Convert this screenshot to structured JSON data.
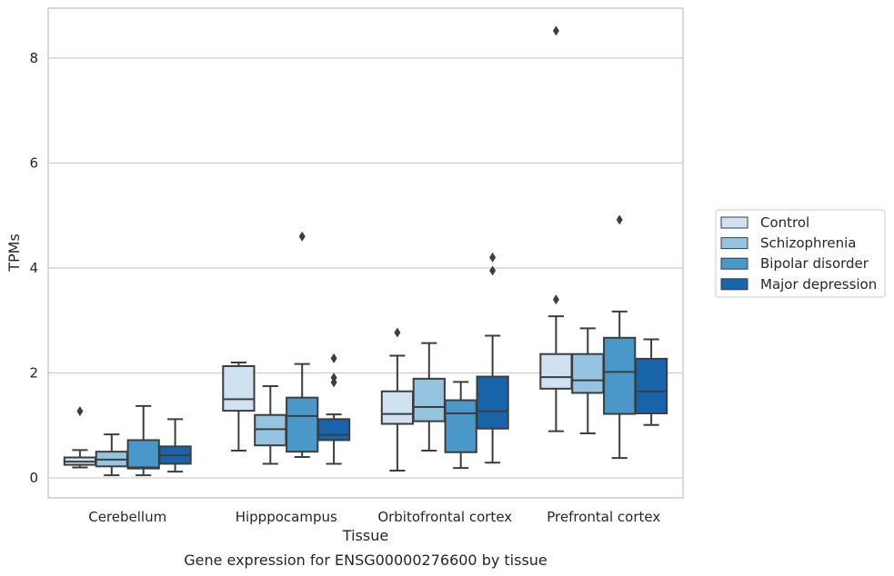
{
  "chart_data": {
    "type": "box",
    "xlabel": "Tissue",
    "ylabel": "TPMs",
    "caption": "Gene expression for ENSG00000276600 by tissue",
    "ylim": [
      -0.38,
      8.95
    ],
    "yticks": [
      0,
      2,
      4,
      6,
      8
    ],
    "grid": true,
    "legend_position": "right",
    "categories": [
      "Cerebellum",
      "Hipppocampus",
      "Orbitofrontal cortex",
      "Prefrontal cortex"
    ],
    "series": [
      {
        "name": "Control",
        "color": "#d0e1f2",
        "boxes": [
          {
            "whislo": 0.2,
            "q1": 0.25,
            "med": 0.31,
            "q3": 0.39,
            "whishi": 0.53,
            "fliers": [
              1.27
            ]
          },
          {
            "whislo": 0.52,
            "q1": 1.28,
            "med": 1.5,
            "q3": 2.13,
            "whishi": 2.2,
            "fliers": []
          },
          {
            "whislo": 0.14,
            "q1": 1.03,
            "med": 1.22,
            "q3": 1.65,
            "whishi": 2.33,
            "fliers": [
              2.77
            ]
          },
          {
            "whislo": 0.89,
            "q1": 1.7,
            "med": 1.92,
            "q3": 2.36,
            "whishi": 3.08,
            "fliers": [
              3.4,
              8.52
            ]
          }
        ]
      },
      {
        "name": "Schizophrenia",
        "color": "#94c4df",
        "boxes": [
          {
            "whislo": 0.05,
            "q1": 0.22,
            "med": 0.35,
            "q3": 0.5,
            "whishi": 0.83,
            "fliers": []
          },
          {
            "whislo": 0.27,
            "q1": 0.62,
            "med": 0.93,
            "q3": 1.2,
            "whishi": 1.75,
            "fliers": []
          },
          {
            "whislo": 0.52,
            "q1": 1.08,
            "med": 1.35,
            "q3": 1.89,
            "whishi": 2.57,
            "fliers": []
          },
          {
            "whislo": 0.85,
            "q1": 1.62,
            "med": 1.86,
            "q3": 2.36,
            "whishi": 2.85,
            "fliers": []
          }
        ]
      },
      {
        "name": "Bipolar disorder",
        "color": "#4a98c9",
        "boxes": [
          {
            "whislo": 0.05,
            "q1": 0.18,
            "med": 0.2,
            "q3": 0.72,
            "whishi": 1.37,
            "fliers": []
          },
          {
            "whislo": 0.4,
            "q1": 0.5,
            "med": 1.18,
            "q3": 1.53,
            "whishi": 2.17,
            "fliers": [
              4.6
            ]
          },
          {
            "whislo": 0.19,
            "q1": 0.49,
            "med": 1.23,
            "q3": 1.48,
            "whishi": 1.83,
            "fliers": []
          },
          {
            "whislo": 0.38,
            "q1": 1.22,
            "med": 2.02,
            "q3": 2.67,
            "whishi": 3.17,
            "fliers": [
              4.92
            ]
          }
        ]
      },
      {
        "name": "Major depression",
        "color": "#1764ab",
        "boxes": [
          {
            "whislo": 0.12,
            "q1": 0.27,
            "med": 0.43,
            "q3": 0.6,
            "whishi": 1.12,
            "fliers": []
          },
          {
            "whislo": 0.27,
            "q1": 0.72,
            "med": 0.82,
            "q3": 1.12,
            "whishi": 1.21,
            "fliers": [
              1.82,
              1.91,
              2.28
            ]
          },
          {
            "whislo": 0.29,
            "q1": 0.94,
            "med": 1.27,
            "q3": 1.93,
            "whishi": 2.71,
            "fliers": [
              3.95,
              4.2
            ]
          },
          {
            "whislo": 1.01,
            "q1": 1.23,
            "med": 1.65,
            "q3": 2.27,
            "whishi": 2.64,
            "fliers": []
          }
        ]
      }
    ]
  }
}
